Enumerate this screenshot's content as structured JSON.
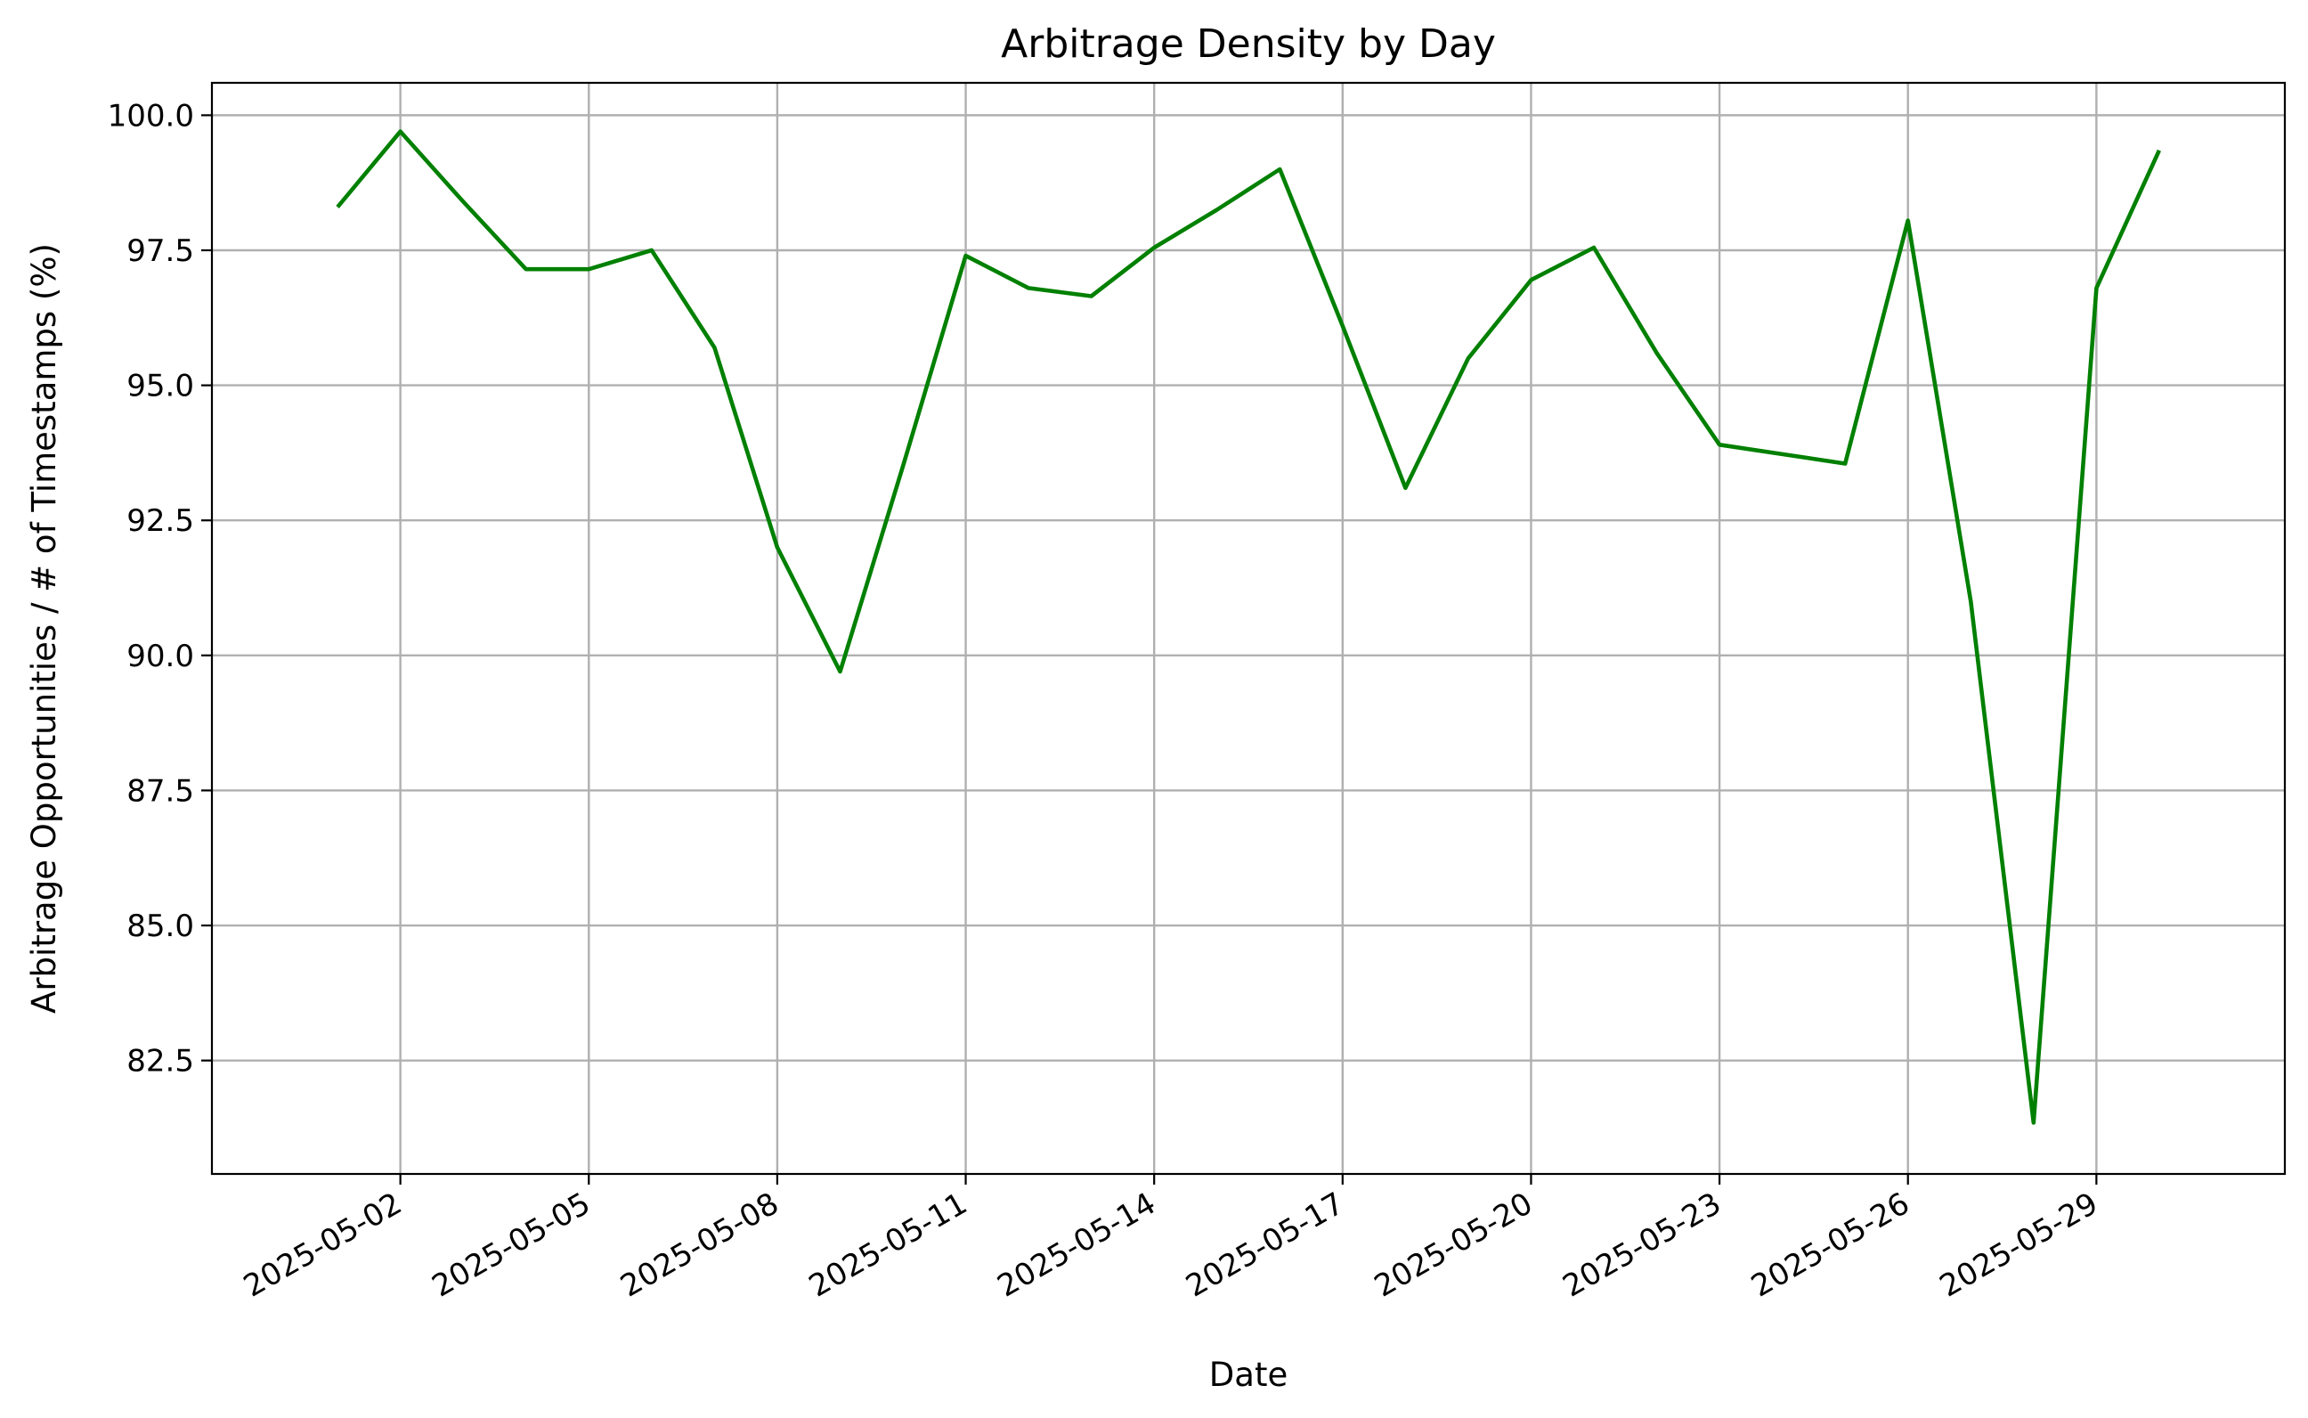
{
  "chart_data": {
    "type": "line",
    "title": "Arbitrage Density by Day",
    "xlabel": "Date",
    "ylabel": "Arbitrage Opportunities / # of Timestamps (%)",
    "grid": true,
    "legend": "none",
    "line_color": "#008000",
    "x_range": [
      "2025-04-29",
      "2025-06-01"
    ],
    "ylim": [
      80.4,
      100.6
    ],
    "x_ticks": [
      "2025-05-02",
      "2025-05-05",
      "2025-05-08",
      "2025-05-11",
      "2025-05-14",
      "2025-05-17",
      "2025-05-20",
      "2025-05-23",
      "2025-05-26",
      "2025-05-29"
    ],
    "y_ticks": [
      "82.5",
      "85.0",
      "87.5",
      "90.0",
      "92.5",
      "95.0",
      "97.5",
      "100.0"
    ],
    "series": [
      {
        "x": [
          "2025-05-01",
          "2025-05-02",
          "2025-05-03",
          "2025-05-04",
          "2025-05-05",
          "2025-05-06",
          "2025-05-07",
          "2025-05-08",
          "2025-05-09",
          "2025-05-10",
          "2025-05-11",
          "2025-05-12",
          "2025-05-13",
          "2025-05-14",
          "2025-05-15",
          "2025-05-16",
          "2025-05-17",
          "2025-05-18",
          "2025-05-19",
          "2025-05-20",
          "2025-05-21",
          "2025-05-22",
          "2025-05-23",
          "2025-05-25",
          "2025-05-26",
          "2025-05-27",
          "2025-05-28",
          "2025-05-29",
          "2025-05-30"
        ],
        "values": [
          98.3,
          99.7,
          98.4,
          97.15,
          97.15,
          97.5,
          95.7,
          92.0,
          89.7,
          93.5,
          97.4,
          96.8,
          96.65,
          97.55,
          98.25,
          99.0,
          96.1,
          93.1,
          95.5,
          96.95,
          97.55,
          95.6,
          93.9,
          93.55,
          98.05,
          91.0,
          81.35,
          96.8,
          99.35
        ]
      }
    ]
  }
}
